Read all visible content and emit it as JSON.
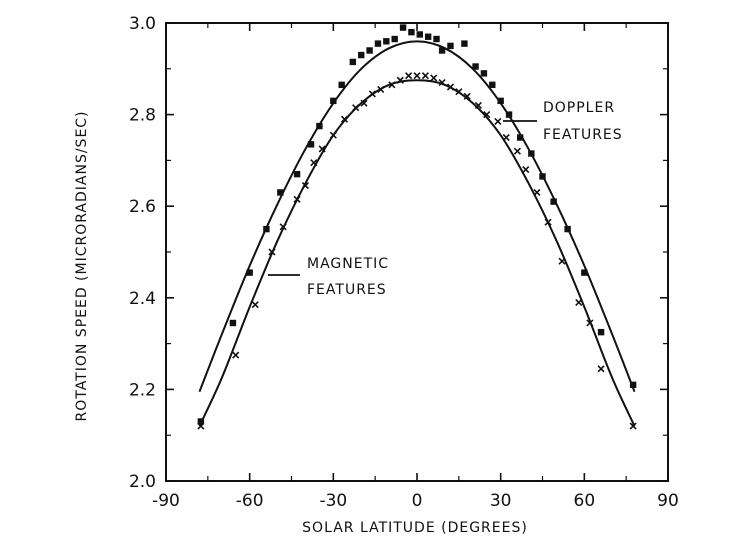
{
  "chart_data": {
    "type": "scatter",
    "title": "",
    "xlabel": "SOLAR LATITUDE (DEGREES)",
    "ylabel": "ROTATION SPEED (MICRORADIANS/SEC)",
    "xlim": [
      -90,
      90
    ],
    "ylim": [
      2.0,
      3.0
    ],
    "xticks": [
      -90,
      -60,
      -30,
      0,
      30,
      60,
      90
    ],
    "yticks": [
      "2.0",
      "2.2",
      "2.4",
      "2.6",
      "2.8",
      "3.0"
    ],
    "grid": false,
    "series": [
      {
        "name": "Doppler features",
        "label_lines": [
          "DOPPLER",
          "FEATURES"
        ],
        "marker": "square",
        "points": [
          [
            -77.5,
            2.13
          ],
          [
            -66,
            2.345
          ],
          [
            -60,
            2.455
          ],
          [
            -54,
            2.55
          ],
          [
            -49,
            2.63
          ],
          [
            -43,
            2.67
          ],
          [
            -38,
            2.735
          ],
          [
            -35,
            2.775
          ],
          [
            -30,
            2.83
          ],
          [
            -27,
            2.865
          ],
          [
            -23,
            2.915
          ],
          [
            -20,
            2.93
          ],
          [
            -17,
            2.94
          ],
          [
            -14,
            2.955
          ],
          [
            -11,
            2.96
          ],
          [
            -8,
            2.965
          ],
          [
            -5,
            2.99
          ],
          [
            -2,
            2.98
          ],
          [
            1,
            2.975
          ],
          [
            4,
            2.97
          ],
          [
            7,
            2.965
          ],
          [
            9,
            2.94
          ],
          [
            12,
            2.95
          ],
          [
            17,
            2.955
          ],
          [
            21,
            2.905
          ],
          [
            24,
            2.89
          ],
          [
            27,
            2.865
          ],
          [
            30,
            2.83
          ],
          [
            33,
            2.8
          ],
          [
            37,
            2.75
          ],
          [
            41,
            2.715
          ],
          [
            45,
            2.665
          ],
          [
            49,
            2.61
          ],
          [
            54,
            2.55
          ],
          [
            60,
            2.455
          ],
          [
            66,
            2.325
          ],
          [
            77.5,
            2.21
          ]
        ],
        "fit_curve": [
          [
            -78,
            2.195
          ],
          [
            -70,
            2.32
          ],
          [
            -60,
            2.47
          ],
          [
            -50,
            2.605
          ],
          [
            -40,
            2.725
          ],
          [
            -30,
            2.825
          ],
          [
            -20,
            2.9
          ],
          [
            -10,
            2.945
          ],
          [
            0,
            2.96
          ],
          [
            10,
            2.945
          ],
          [
            20,
            2.9
          ],
          [
            30,
            2.825
          ],
          [
            40,
            2.725
          ],
          [
            50,
            2.605
          ],
          [
            60,
            2.47
          ],
          [
            70,
            2.32
          ],
          [
            78,
            2.195
          ]
        ]
      },
      {
        "name": "Magnetic features",
        "label_lines": [
          "MAGNETIC",
          "FEATURES"
        ],
        "marker": "x",
        "points": [
          [
            -77.5,
            2.12
          ],
          [
            -65,
            2.275
          ],
          [
            -58,
            2.385
          ],
          [
            -52,
            2.5
          ],
          [
            -48,
            2.555
          ],
          [
            -43,
            2.615
          ],
          [
            -40,
            2.645
          ],
          [
            -37,
            2.695
          ],
          [
            -34,
            2.725
          ],
          [
            -30,
            2.755
          ],
          [
            -26,
            2.79
          ],
          [
            -22,
            2.815
          ],
          [
            -19,
            2.825
          ],
          [
            -16,
            2.845
          ],
          [
            -13,
            2.855
          ],
          [
            -9,
            2.865
          ],
          [
            -6,
            2.875
          ],
          [
            -3,
            2.885
          ],
          [
            0,
            2.885
          ],
          [
            3,
            2.885
          ],
          [
            6,
            2.88
          ],
          [
            9,
            2.87
          ],
          [
            12,
            2.86
          ],
          [
            15,
            2.85
          ],
          [
            18,
            2.84
          ],
          [
            22,
            2.82
          ],
          [
            25,
            2.8
          ],
          [
            29,
            2.785
          ],
          [
            32,
            2.75
          ],
          [
            36,
            2.72
          ],
          [
            39,
            2.68
          ],
          [
            43,
            2.63
          ],
          [
            47,
            2.565
          ],
          [
            52,
            2.48
          ],
          [
            58,
            2.39
          ],
          [
            62,
            2.345
          ],
          [
            66,
            2.245
          ],
          [
            77.5,
            2.12
          ]
        ],
        "fit_curve": [
          [
            -78,
            2.12
          ],
          [
            -70,
            2.225
          ],
          [
            -60,
            2.38
          ],
          [
            -50,
            2.525
          ],
          [
            -40,
            2.65
          ],
          [
            -30,
            2.755
          ],
          [
            -20,
            2.825
          ],
          [
            -10,
            2.865
          ],
          [
            0,
            2.875
          ],
          [
            10,
            2.865
          ],
          [
            20,
            2.825
          ],
          [
            30,
            2.755
          ],
          [
            40,
            2.65
          ],
          [
            50,
            2.525
          ],
          [
            60,
            2.38
          ],
          [
            70,
            2.225
          ],
          [
            78,
            2.12
          ]
        ]
      }
    ]
  }
}
